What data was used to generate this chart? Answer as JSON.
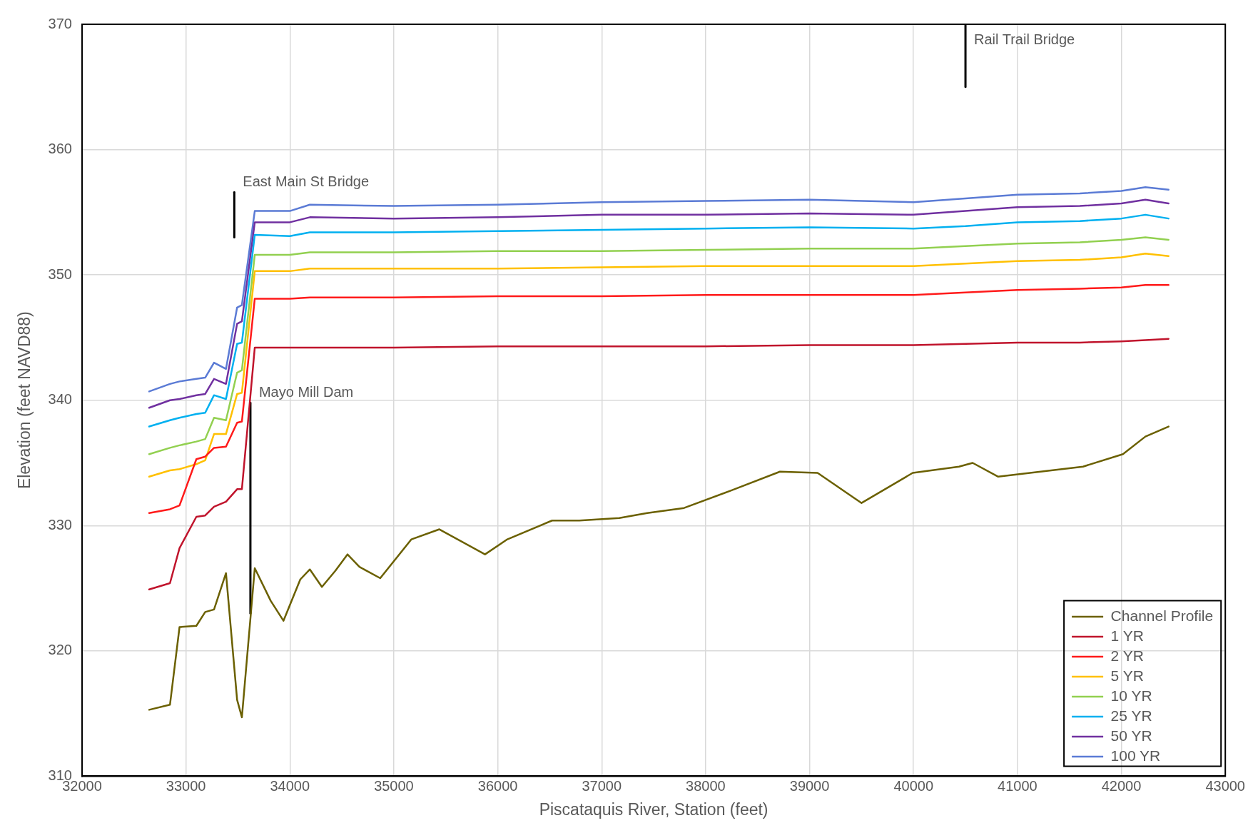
{
  "chart_data": {
    "type": "line",
    "xlabel": "Piscataquis River, Station (feet)",
    "ylabel": "Elevation (feet NAVD88)",
    "x": [
      32646,
      32846,
      32938,
      33100,
      33185,
      33270,
      33385,
      33492,
      33538,
      33662,
      34000,
      34192,
      35000,
      36000,
      37000,
      38000,
      39000,
      40000,
      40500,
      41000,
      41600,
      42000,
      42231,
      42454
    ],
    "series": [
      {
        "name": "Channel Profile",
        "color": "#6b6000",
        "x": [
          32646,
          32846,
          32938,
          33100,
          33185,
          33270,
          33385,
          33492,
          33538,
          33662,
          33815,
          33938,
          34100,
          34192,
          34308,
          34438,
          34554,
          34669,
          34869,
          35169,
          35438,
          35877,
          36092,
          36523,
          36785,
          37169,
          37438,
          37792,
          38246,
          38715,
          39077,
          39500,
          39992,
          40438,
          40569,
          40815,
          41631,
          42015,
          42231,
          42454
        ],
        "values": [
          315.3,
          315.7,
          321.9,
          322.0,
          323.1,
          323.3,
          326.2,
          316.1,
          314.7,
          326.6,
          324.0,
          322.4,
          325.7,
          326.5,
          325.1,
          326.4,
          327.7,
          326.7,
          325.8,
          328.9,
          329.7,
          327.7,
          328.9,
          330.4,
          330.4,
          330.6,
          331.0,
          331.4,
          332.8,
          334.3,
          334.2,
          331.8,
          334.2,
          334.7,
          335.0,
          333.9,
          334.7,
          335.7,
          337.1,
          337.9
        ]
      },
      {
        "name": "1 YR",
        "color": "#c0142c",
        "values": [
          324.9,
          325.4,
          328.2,
          330.7,
          330.8,
          331.5,
          331.9,
          332.9,
          332.9,
          344.2,
          344.2,
          344.2,
          344.2,
          344.3,
          344.3,
          344.3,
          344.4,
          344.4,
          344.5,
          344.6,
          344.6,
          344.7,
          344.8,
          344.9
        ]
      },
      {
        "name": "2 YR",
        "color": "#ff1a1a",
        "values": [
          331.0,
          331.3,
          331.6,
          335.3,
          335.5,
          336.2,
          336.3,
          338.2,
          338.3,
          348.1,
          348.1,
          348.2,
          348.2,
          348.3,
          348.3,
          348.4,
          348.4,
          348.4,
          348.6,
          348.8,
          348.9,
          349.0,
          349.2,
          349.2
        ]
      },
      {
        "name": "5 YR",
        "color": "#ffc000",
        "values": [
          333.9,
          334.4,
          334.5,
          334.9,
          335.2,
          337.3,
          337.3,
          340.5,
          340.6,
          350.3,
          350.3,
          350.5,
          350.5,
          350.5,
          350.6,
          350.7,
          350.7,
          350.7,
          350.9,
          351.1,
          351.2,
          351.4,
          351.7,
          351.5
        ]
      },
      {
        "name": "10 YR",
        "color": "#92d050",
        "values": [
          335.7,
          336.2,
          336.4,
          336.7,
          336.9,
          338.6,
          338.4,
          342.2,
          342.4,
          351.6,
          351.6,
          351.8,
          351.8,
          351.9,
          351.9,
          352.0,
          352.1,
          352.1,
          352.3,
          352.5,
          352.6,
          352.8,
          353.0,
          352.8
        ]
      },
      {
        "name": "25 YR",
        "color": "#00b0f0",
        "values": [
          337.9,
          338.4,
          338.6,
          338.9,
          339.0,
          340.4,
          340.1,
          344.5,
          344.6,
          353.2,
          353.1,
          353.4,
          353.4,
          353.5,
          353.6,
          353.7,
          353.8,
          353.7,
          353.9,
          354.2,
          354.3,
          354.5,
          354.8,
          354.5
        ]
      },
      {
        "name": "50 YR",
        "color": "#7030a0",
        "values": [
          339.4,
          340.0,
          340.1,
          340.4,
          340.5,
          341.7,
          341.3,
          346.1,
          346.3,
          354.2,
          354.2,
          354.6,
          354.5,
          354.6,
          354.8,
          354.8,
          354.9,
          354.8,
          355.1,
          355.4,
          355.5,
          355.7,
          356.0,
          355.7
        ]
      },
      {
        "name": "100 YR",
        "color": "#5b7bd5",
        "values": [
          340.7,
          341.3,
          341.5,
          341.7,
          341.8,
          343.0,
          342.5,
          347.4,
          347.6,
          355.1,
          355.1,
          355.6,
          355.5,
          355.6,
          355.8,
          355.9,
          356.0,
          355.8,
          356.1,
          356.4,
          356.5,
          356.7,
          357.0,
          356.8
        ]
      },
      {
        "color": "#000000",
        "x": [
          33465,
          33465
        ],
        "values": [
          353.0,
          356.6
        ]
      },
      {
        "color": "#000000",
        "x": [
          33620,
          33620
        ],
        "values": [
          323.0,
          339.8
        ]
      },
      {
        "color": "#000000",
        "x": [
          40500,
          40500
        ],
        "values": [
          365.0,
          370.0
        ]
      }
    ],
    "xlim": [
      32000,
      43000
    ],
    "xticks": [
      32000,
      33000,
      34000,
      35000,
      36000,
      37000,
      38000,
      39000,
      40000,
      41000,
      42000,
      43000
    ],
    "ylim": [
      310,
      370
    ],
    "yticks": [
      310,
      320,
      330,
      340,
      350,
      360,
      370
    ],
    "grid": true,
    "legend": "bottom right",
    "marker": "none",
    "line_style": "solid",
    "annotations": [
      {
        "text": "East Main St Bridge",
        "x": 33465,
        "y": 356.6
      },
      {
        "text": "Mayo Mill Dam",
        "x": 33620,
        "y": 339.8
      },
      {
        "text": "Rail Trail Bridge",
        "x": 40500,
        "y": 370.0
      }
    ]
  }
}
